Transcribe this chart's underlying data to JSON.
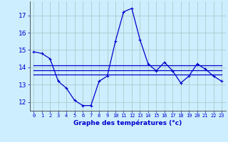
{
  "xlabel": "Graphe des températures (°c)",
  "background_color": "#cceeff",
  "grid_color": "#aacccc",
  "line_color": "#0000cc",
  "x_hours": [
    0,
    1,
    2,
    3,
    4,
    5,
    6,
    7,
    8,
    9,
    10,
    11,
    12,
    13,
    14,
    15,
    16,
    17,
    18,
    19,
    20,
    21,
    22,
    23
  ],
  "temp_main": [
    14.9,
    14.8,
    14.5,
    13.2,
    12.8,
    12.1,
    11.8,
    11.8,
    13.2,
    13.5,
    15.5,
    17.2,
    17.4,
    15.6,
    14.2,
    13.8,
    14.3,
    13.8,
    13.1,
    13.5,
    14.2,
    13.9,
    13.5,
    13.2
  ],
  "temp_flat1": [
    14.1,
    14.1,
    14.1,
    14.1,
    14.1,
    14.1,
    14.1,
    14.1,
    14.1,
    14.1,
    14.1,
    14.1,
    14.1,
    14.1,
    14.1,
    14.1,
    14.1,
    14.1,
    14.1,
    14.1,
    14.1,
    14.1,
    14.1,
    14.1
  ],
  "temp_flat2": [
    13.85,
    13.85,
    13.85,
    13.85,
    13.85,
    13.85,
    13.85,
    13.85,
    13.85,
    13.85,
    13.85,
    13.85,
    13.85,
    13.85,
    13.85,
    13.85,
    13.85,
    13.85,
    13.85,
    13.85,
    13.85,
    13.85,
    13.85,
    13.85
  ],
  "temp_flat3": [
    13.6,
    13.6,
    13.6,
    13.6,
    13.6,
    13.6,
    13.6,
    13.6,
    13.6,
    13.6,
    13.6,
    13.6,
    13.6,
    13.6,
    13.6,
    13.6,
    13.6,
    13.6,
    13.6,
    13.6,
    13.6,
    13.6,
    13.6,
    13.6
  ],
  "ylim": [
    11.5,
    17.8
  ],
  "yticks": [
    12,
    13,
    14,
    15,
    16,
    17
  ],
  "xticks": [
    0,
    1,
    2,
    3,
    4,
    5,
    6,
    7,
    8,
    9,
    10,
    11,
    12,
    13,
    14,
    15,
    16,
    17,
    18,
    19,
    20,
    21,
    22,
    23
  ]
}
